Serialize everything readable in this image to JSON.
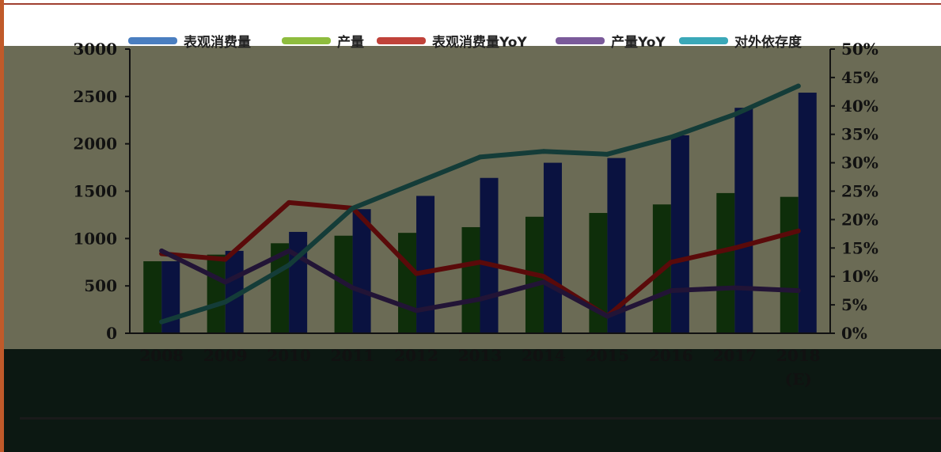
{
  "chart_data": {
    "type": "bar",
    "categories": [
      "2008",
      "2009",
      "2010",
      "2011",
      "2012",
      "2013",
      "2014",
      "2015",
      "2016",
      "2017",
      "2018"
    ],
    "category_sublabel": "(E)",
    "series": [
      {
        "name": "表观消费量",
        "type": "bar",
        "axis": "left",
        "color": "#0a1240",
        "legend_color": "#4a7ec0",
        "values": [
          760,
          870,
          1070,
          1310,
          1450,
          1640,
          1800,
          1850,
          2090,
          2380,
          2540
        ]
      },
      {
        "name": "产量",
        "type": "bar",
        "axis": "left",
        "color": "#0e2e0a",
        "legend_color": "#8ebc3e",
        "values": [
          760,
          830,
          950,
          1030,
          1060,
          1120,
          1230,
          1270,
          1360,
          1480,
          1440
        ]
      },
      {
        "name": "表观消费量YoY",
        "type": "line",
        "axis": "right",
        "color": "#5a0a0a",
        "legend_color": "#c0423a",
        "values": [
          14,
          13,
          23,
          22,
          10.5,
          12.5,
          10,
          3,
          12.5,
          15,
          18
        ]
      },
      {
        "name": "产量YoY",
        "type": "line",
        "axis": "right",
        "color": "#221436",
        "legend_color": "#7a5a9a",
        "values": [
          14.5,
          9,
          14.5,
          8,
          4,
          6,
          9,
          3,
          7.5,
          8,
          7.5
        ]
      },
      {
        "name": "对外依存度",
        "type": "line",
        "axis": "right",
        "color": "#143c38",
        "legend_color": "#3aa8b8",
        "values": [
          2,
          5.5,
          12,
          22,
          26.5,
          31,
          32,
          31.5,
          34.5,
          38.5,
          43.5
        ]
      }
    ],
    "y_left": {
      "min": 0,
      "max": 3000,
      "ticks": [
        0,
        500,
        1000,
        1500,
        2000,
        2500,
        3000
      ]
    },
    "y_right": {
      "min": 0,
      "max": 50,
      "ticks": [
        "0%",
        "5%",
        "10%",
        "15%",
        "20%",
        "25%",
        "30%",
        "35%",
        "40%",
        "45%",
        "50%"
      ]
    },
    "legend_position": "top",
    "grid": false
  }
}
